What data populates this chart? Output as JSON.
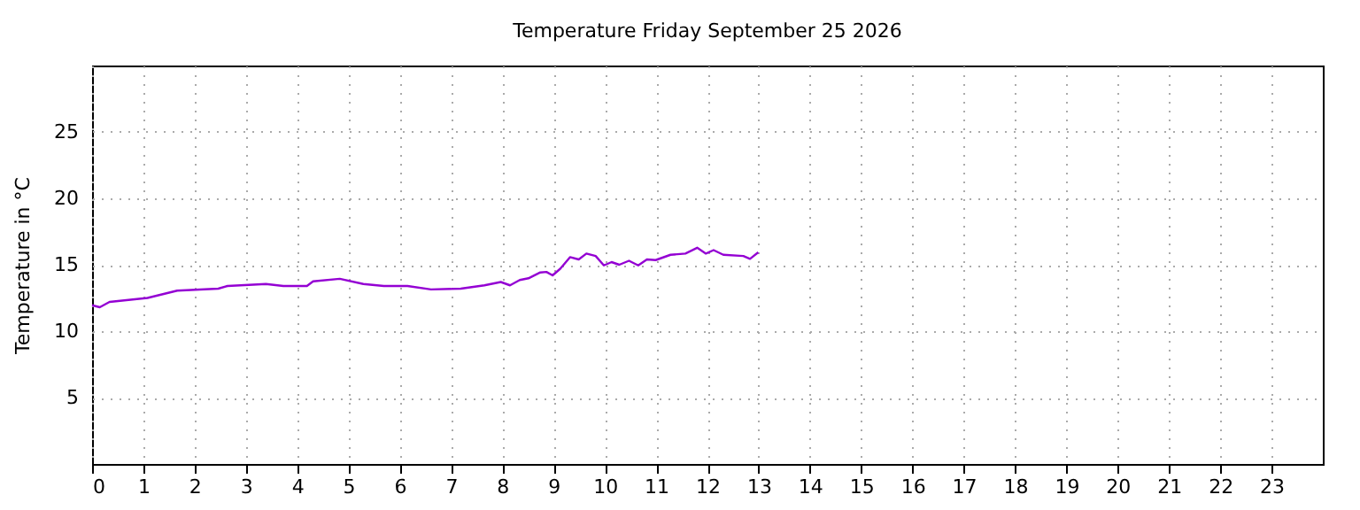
{
  "chart_data": {
    "type": "line",
    "title": "Temperature Friday September 25 2026",
    "ylabel": "Temperature in °C",
    "x": [
      0,
      0.15,
      0.34,
      1.08,
      1.66,
      2.46,
      2.64,
      3.39,
      3.73,
      4.19,
      4.31,
      4.83,
      5.29,
      5.69,
      6.15,
      6.61,
      7.19,
      7.65,
      7.97,
      8.15,
      8.34,
      8.51,
      8.74,
      8.86,
      8.98,
      9.13,
      9.32,
      9.49,
      9.64,
      9.82,
      9.98,
      10.13,
      10.28,
      10.47,
      10.65,
      10.82,
      10.99,
      11.28,
      11.57,
      11.8,
      11.97,
      12.12,
      12.31,
      12.7,
      12.83,
      12.99
    ],
    "series": [
      {
        "color": "#9400d3",
        "values": [
          11.95,
          11.8,
          12.2,
          12.5,
          13.05,
          13.2,
          13.4,
          13.55,
          13.4,
          13.4,
          13.75,
          13.94,
          13.55,
          13.4,
          13.4,
          13.14,
          13.2,
          13.45,
          13.7,
          13.45,
          13.85,
          13.98,
          14.42,
          14.46,
          14.2,
          14.7,
          15.57,
          15.4,
          15.84,
          15.66,
          14.95,
          15.2,
          15.0,
          15.3,
          14.95,
          15.4,
          15.35,
          15.75,
          15.84,
          16.28,
          15.84,
          16.1,
          15.75,
          15.66,
          15.44,
          15.93
        ]
      }
    ],
    "xlim": [
      0,
      24
    ],
    "xticks": [
      0,
      1,
      2,
      3,
      4,
      5,
      6,
      7,
      8,
      9,
      10,
      11,
      12,
      13,
      14,
      15,
      16,
      17,
      18,
      19,
      20,
      21,
      22,
      23
    ],
    "ylim": [
      0,
      30
    ],
    "yticks": [
      5,
      10,
      15,
      20,
      25
    ],
    "grid": true,
    "line_style": "solid",
    "marker": "none"
  }
}
